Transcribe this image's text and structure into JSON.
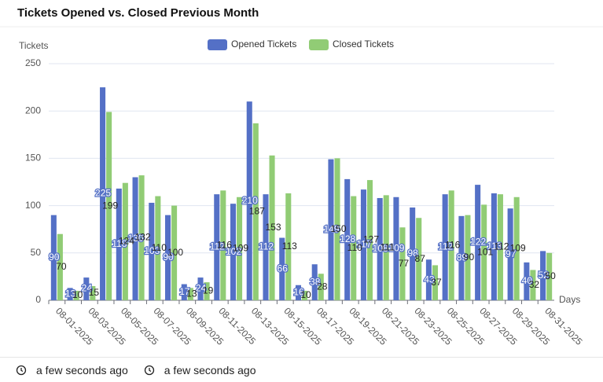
{
  "chart_data": {
    "type": "bar",
    "title": "Tickets Opened vs. Closed Previous Month",
    "y_label": "Tickets",
    "x_label": "Days",
    "categories": [
      "08-01-2025",
      null,
      "08-03-2025",
      null,
      "08-05-2025",
      null,
      "08-07-2025",
      null,
      "08-09-2025",
      null,
      "08-11-2025",
      null,
      "08-13-2025",
      null,
      "08-15-2025",
      null,
      "08-17-2025",
      null,
      "08-19-2025",
      null,
      "08-21-2025",
      null,
      "08-23-2025",
      null,
      "08-25-2025",
      null,
      "08-27-2025",
      null,
      "08-29-2025",
      null,
      "08-31-2025"
    ],
    "series": [
      {
        "name": "Opened Tickets",
        "color": "#5470c6",
        "values": [
          90,
          13,
          24,
          225,
          118,
          130,
          103,
          90,
          17,
          24,
          112,
          102,
          210,
          112,
          66,
          16,
          38,
          149,
          128,
          117,
          108,
          109,
          98,
          43,
          112,
          89,
          122,
          113,
          97,
          40,
          52
        ]
      },
      {
        "name": "Closed Tickets",
        "color": "#91cc75",
        "values": [
          70,
          10,
          15,
          199,
          124,
          132,
          110,
          100,
          13,
          19,
          116,
          109,
          187,
          153,
          113,
          10,
          28,
          150,
          110,
          127,
          111,
          77,
          87,
          37,
          116,
          90,
          101,
          112,
          109,
          32,
          50
        ]
      }
    ],
    "ylim": [
      0,
      250
    ],
    "yticks": [
      0,
      50,
      100,
      150,
      200,
      250
    ],
    "grid": true
  },
  "footer": [
    "a few seconds ago",
    "a few seconds ago"
  ]
}
